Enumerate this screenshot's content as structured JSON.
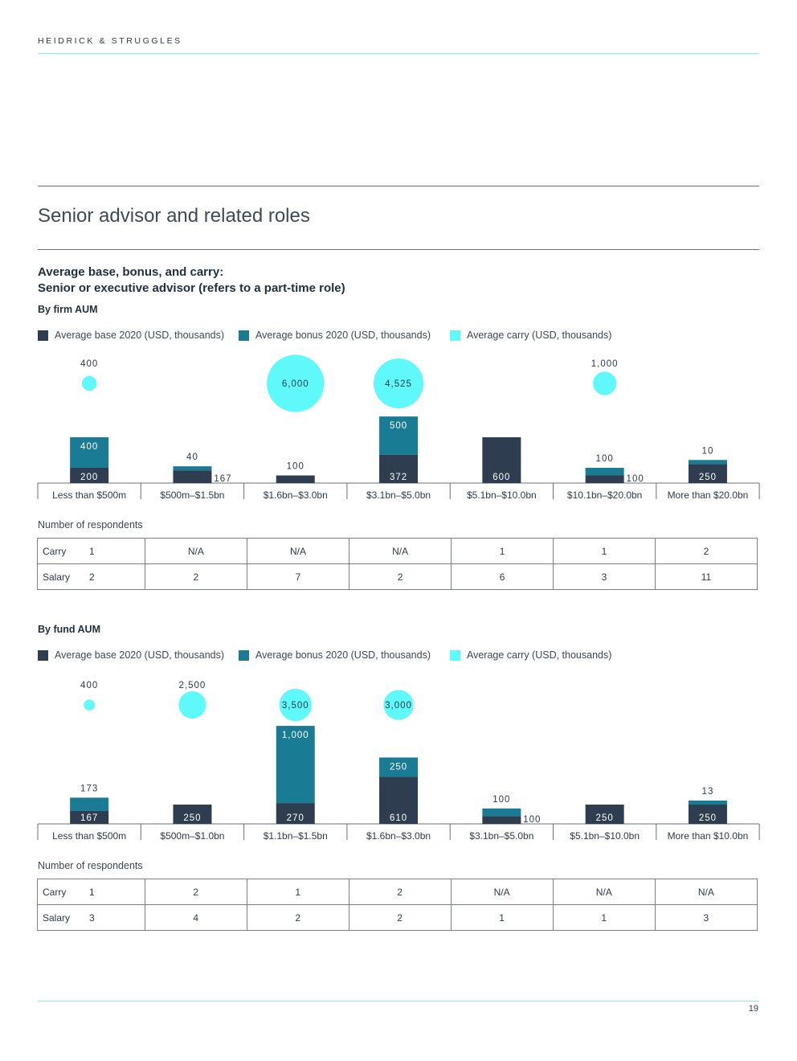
{
  "header": {
    "brand": "HEIDRICK & STRUGGLES"
  },
  "section_title": "Senior advisor and related roles",
  "chart_title_line1": "Average base, bonus, and carry:",
  "chart_title_line2": "Senior or executive advisor (refers to a part-time role)",
  "colors": {
    "base": "#2e3d50",
    "bonus": "#1a7b94",
    "carry": "#5ff9fb"
  },
  "legend": {
    "base": "Average base 2020 (USD, thousands)",
    "bonus": "Average bonus 2020 (USD, thousands)",
    "carry": "Average carry (USD, thousands)"
  },
  "respondents_label": "Number of respondents",
  "page_number": "19",
  "chart_data": [
    {
      "type": "bar",
      "subtitle": "By firm AUM",
      "stacked": true,
      "categories": [
        "Less than $500m",
        "$500m–$1.5bn",
        "$1.6bn–$3.0bn",
        "$3.1bn–$5.0bn",
        "$5.1bn–$10.0bn",
        "$10.1bn–$20.0bn",
        "More than $20.0bn"
      ],
      "series": [
        {
          "name": "Average base 2020 (USD, thousands)",
          "key": "base",
          "values": [
            200,
            167,
            100,
            372,
            600,
            100,
            250
          ]
        },
        {
          "name": "Average bonus 2020 (USD, thousands)",
          "key": "bonus",
          "values": [
            400,
            40,
            null,
            500,
            null,
            100,
            10
          ]
        },
        {
          "name": "Average carry (USD, thousands)",
          "key": "carry",
          "values": [
            400,
            null,
            6000,
            4525,
            null,
            1000,
            null
          ]
        }
      ],
      "respondents": {
        "rows": [
          {
            "label": "Carry",
            "values": [
              "1",
              "N/A",
              "N/A",
              "N/A",
              "1",
              "1",
              "2"
            ]
          },
          {
            "label": "Salary",
            "values": [
              "2",
              "2",
              "7",
              "2",
              "6",
              "3",
              "11"
            ]
          }
        ]
      }
    },
    {
      "type": "bar",
      "subtitle": "By fund AUM",
      "stacked": true,
      "categories": [
        "Less than $500m",
        "$500m–$1.0bn",
        "$1.1bn–$1.5bn",
        "$1.6bn–$3.0bn",
        "$3.1bn–$5.0bn",
        "$5.1bn–$10.0bn",
        "More than $10.0bn"
      ],
      "series": [
        {
          "name": "Average base 2020 (USD, thousands)",
          "key": "base",
          "values": [
            167,
            250,
            270,
            610,
            100,
            250,
            250
          ]
        },
        {
          "name": "Average bonus 2020 (USD, thousands)",
          "key": "bonus",
          "values": [
            173,
            null,
            1000,
            250,
            100,
            null,
            13
          ]
        },
        {
          "name": "Average carry (USD, thousands)",
          "key": "carry",
          "values": [
            400,
            2500,
            3500,
            3000,
            null,
            null,
            null
          ]
        }
      ],
      "respondents": {
        "rows": [
          {
            "label": "Carry",
            "values": [
              "1",
              "2",
              "1",
              "2",
              "N/A",
              "N/A",
              "N/A"
            ]
          },
          {
            "label": "Salary",
            "values": [
              "3",
              "4",
              "2",
              "2",
              "1",
              "1",
              "3"
            ]
          }
        ]
      }
    }
  ]
}
